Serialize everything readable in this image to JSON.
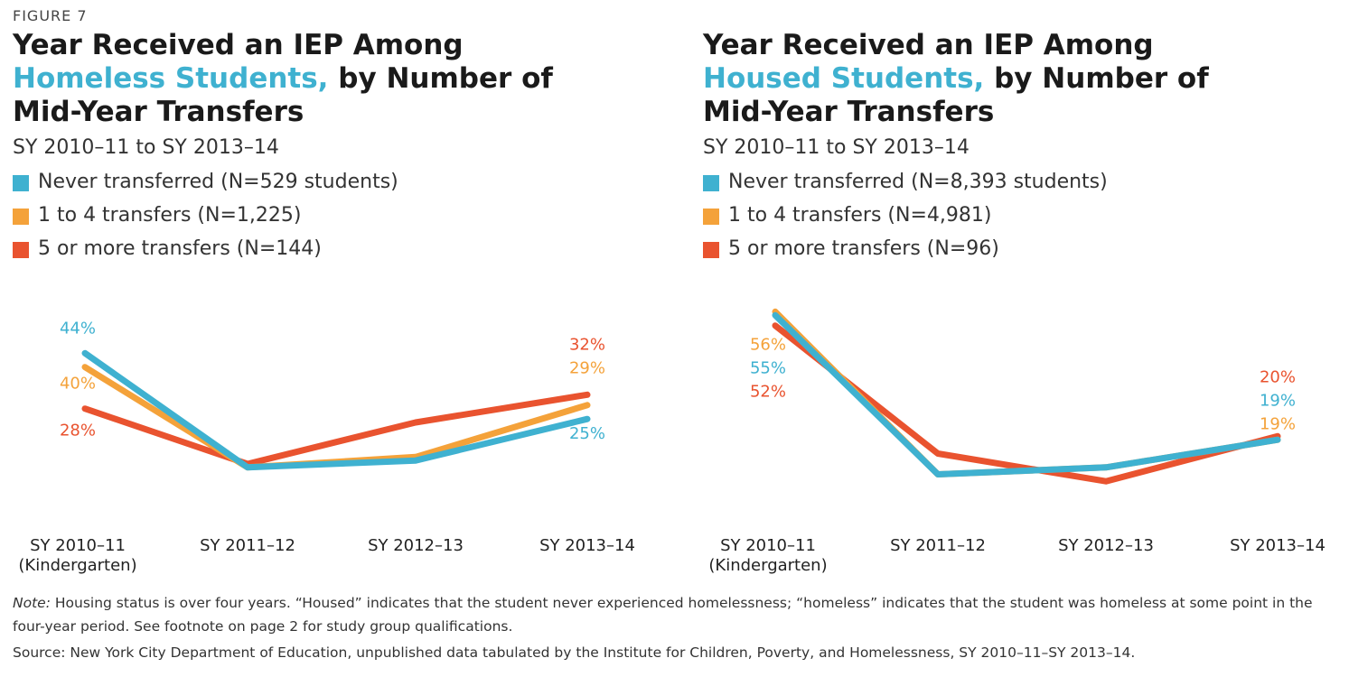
{
  "figure_label": "FIGURE 7",
  "note_label": "Note:",
  "note_text": "Housing status is over four years. “Housed” indicates that the student never experienced homelessness; “homeless” indicates that the student was homeless at some point in the four-year period. See footnote on page 2 for study group qualifications.",
  "source": "Source: New York City Department of Education, unpublished data tabulated by the Institute for Children, Poverty, and Homelessness, SY 2010–11–SY 2013–14.",
  "colors": {
    "never": "#3fb1d0",
    "one_to_four": "#f4a23a",
    "five_plus": "#e9532f",
    "highlight": "#3fb1d0"
  },
  "chart_data": [
    {
      "type": "line",
      "title_line1": "Year Received an IEP Among",
      "title_highlight": "Homeless Students,",
      "title_rest": " by Number of",
      "title_line3": "Mid-Year Transfers",
      "subtitle": "SY 2010–11 to SY 2013–14",
      "categories": [
        "SY 2010–11",
        "SY 2011–12",
        "SY 2012–13",
        "SY 2013–14"
      ],
      "category_sublabel": "(Kindergarten)",
      "ylim": [
        0,
        60
      ],
      "series": [
        {
          "name": "Never transferred (N=529 students)",
          "color": "#3fb1d0",
          "values": [
            44,
            11,
            13,
            25
          ],
          "labels": {
            "0": "44%",
            "3": "25%"
          }
        },
        {
          "name": "1 to 4 transfers (N=1,225)",
          "color": "#f4a23a",
          "values": [
            40,
            11,
            14,
            29
          ],
          "labels": {
            "0": "40%",
            "3": "29%"
          }
        },
        {
          "name": "5 or more transfers (N=144)",
          "color": "#e9532f",
          "values": [
            28,
            12,
            24,
            32
          ],
          "labels": {
            "0": "28%",
            "3": "32%"
          }
        }
      ]
    },
    {
      "type": "line",
      "title_line1": "Year Received an IEP Among",
      "title_highlight": "Housed Students,",
      "title_rest": " by Number of",
      "title_line3": "Mid-Year Transfers",
      "subtitle": "SY 2010–11 to SY 2013–14",
      "categories": [
        "SY 2010–11",
        "SY 2011–12",
        "SY 2012–13",
        "SY 2013–14"
      ],
      "category_sublabel": "(Kindergarten)",
      "ylim": [
        0,
        60
      ],
      "series": [
        {
          "name": "Never transferred (N=8,393 students)",
          "color": "#3fb1d0",
          "values": [
            55,
            9,
            11,
            19
          ],
          "labels": {
            "0": "55%",
            "3": "19%"
          }
        },
        {
          "name": "1 to 4 transfers (N=4,981)",
          "color": "#f4a23a",
          "values": [
            56,
            9,
            11,
            19
          ],
          "labels": {
            "0": "56%",
            "3": "19%"
          }
        },
        {
          "name": "5 or more transfers (N=96)",
          "color": "#e9532f",
          "values": [
            52,
            15,
            7,
            20
          ],
          "labels": {
            "0": "52%",
            "3": "20%"
          }
        }
      ]
    }
  ]
}
